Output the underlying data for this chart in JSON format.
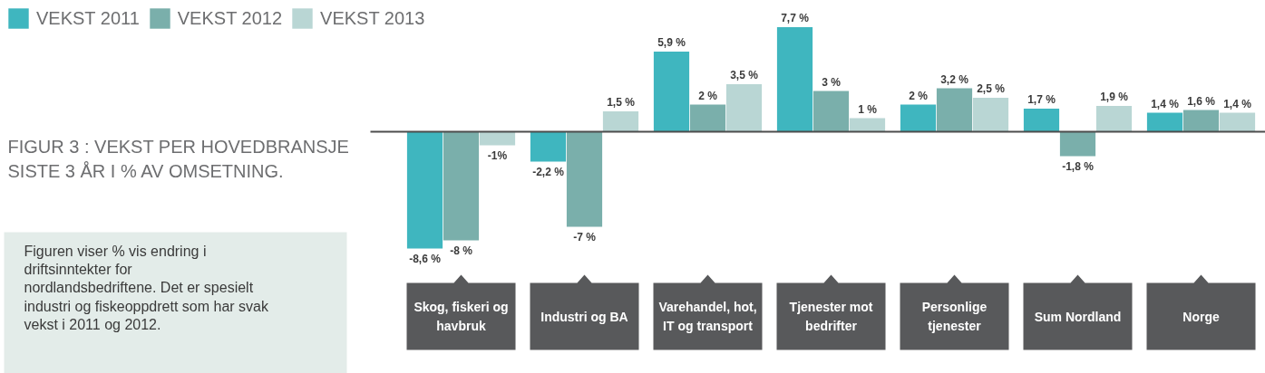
{
  "chart_data": {
    "type": "bar",
    "title": "FIGUR 3 : VEKST PER HOVEDBRANSJE SISTE 3 ÅR I % AV OMSETNING.",
    "categories": [
      "Skog, fiskeri og havbruk",
      "Industri og BA",
      "Varehandel, hot, IT og transport",
      "Tjenester mot bedrifter",
      "Personlige tjenester",
      "Sum Nordland",
      "Norge"
    ],
    "series": [
      {
        "name": "VEKST 2011",
        "color": "#3fb6bf",
        "values": [
          -8.6,
          -2.2,
          5.9,
          7.7,
          2,
          1.7,
          1.4
        ],
        "value_labels": [
          "-8,6 %",
          "-2,2 %",
          "5,9 %",
          "7,7 %",
          "2 %",
          "1,7 %",
          "1,4 %"
        ]
      },
      {
        "name": "VEKST 2012",
        "color": "#7aafab",
        "values": [
          -8,
          -7,
          2,
          3,
          3.2,
          -1.8,
          1.6
        ],
        "value_labels": [
          "-8 %",
          "-7 %",
          "2 %",
          "3 %",
          "3,2 %",
          "-1,8 %",
          "1,6 %"
        ]
      },
      {
        "name": "VEKST 2013",
        "color": "#b9d6d4",
        "values": [
          -1,
          1.5,
          3.5,
          1,
          2.5,
          1.9,
          1.4
        ],
        "value_labels": [
          "-1%",
          "1,5 %",
          "3,5 %",
          "1 %",
          "2,5 %",
          "1,9 %",
          "1,4 %"
        ]
      }
    ],
    "annotations": [
      "Figuren viser % vis endring i driftsinntekter for nordlandsbedriftene. Det er spesielt industri og fiskeoppdrett som har svak vekst i 2011 og 2012."
    ],
    "legend": "top left",
    "grid": false
  }
}
